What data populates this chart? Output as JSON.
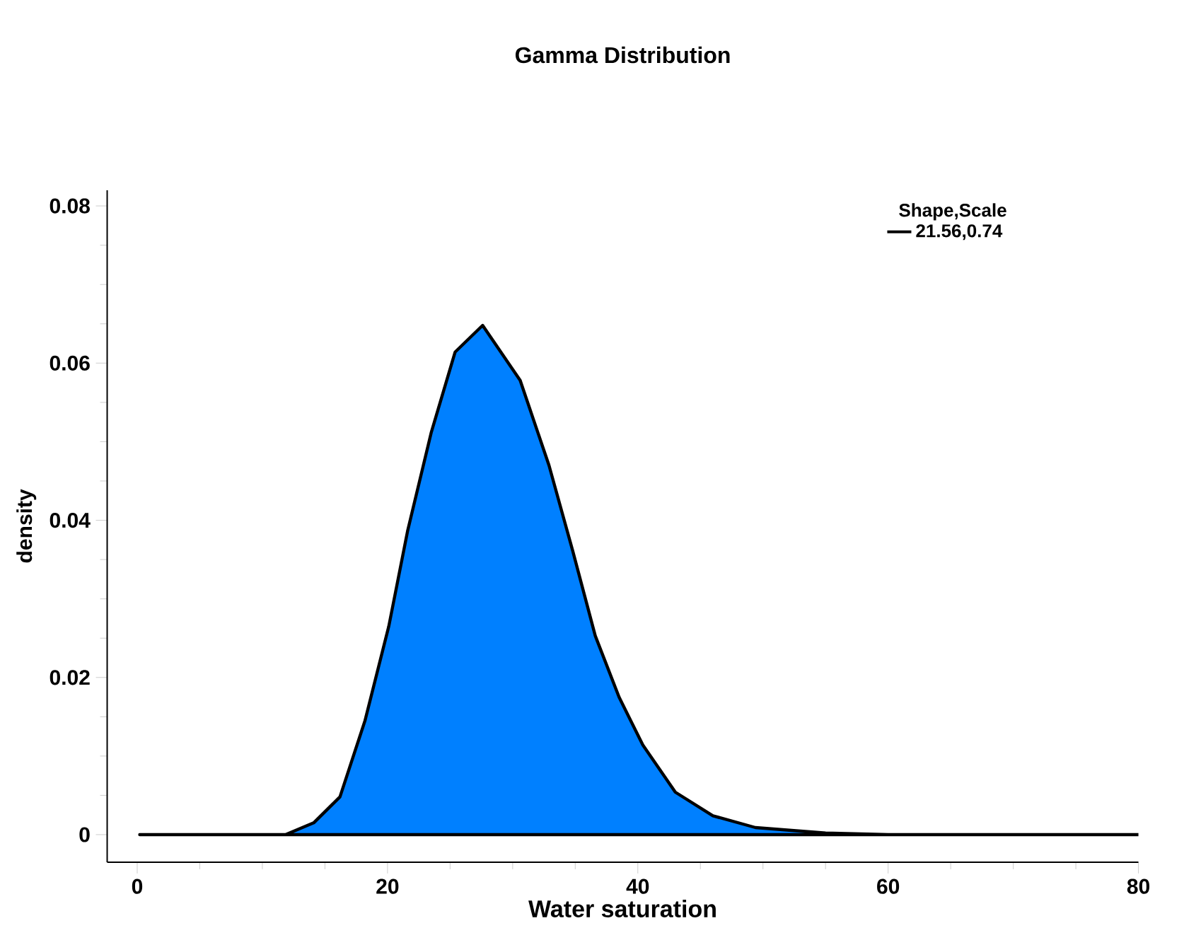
{
  "chart_data": {
    "type": "area",
    "title": "Gamma Distribution",
    "xlabel": "Water saturation",
    "ylabel": "density",
    "legend_title": "Shape,Scale",
    "legend": "top right",
    "x": [
      0.2,
      5,
      10,
      11.85,
      14.1,
      16.2,
      18.2,
      20.1,
      21.6,
      23.5,
      25.4,
      27.6,
      30.6,
      32.9,
      34.8,
      36.6,
      38.5,
      40.4,
      43.0,
      46.0,
      49.4,
      55,
      60,
      70,
      80
    ],
    "series": [
      {
        "name": "21.56,0.74",
        "color": "#0080ff",
        "values": [
          0,
          0,
          0,
          0,
          0.0015,
          0.0048,
          0.0145,
          0.0265,
          0.0386,
          0.0512,
          0.0614,
          0.0648,
          0.0578,
          0.047,
          0.0361,
          0.0253,
          0.0175,
          0.0114,
          0.0054,
          0.0024,
          0.0009,
          0.0002,
          0,
          0,
          0
        ]
      }
    ],
    "xlim": [
      -2.4,
      80
    ],
    "ylim": [
      -0.0035,
      0.082
    ],
    "xticks": [
      0,
      20,
      40,
      60,
      80
    ],
    "yticks": [
      0,
      0.02,
      0.04,
      0.06,
      0.08
    ],
    "grid": false
  }
}
